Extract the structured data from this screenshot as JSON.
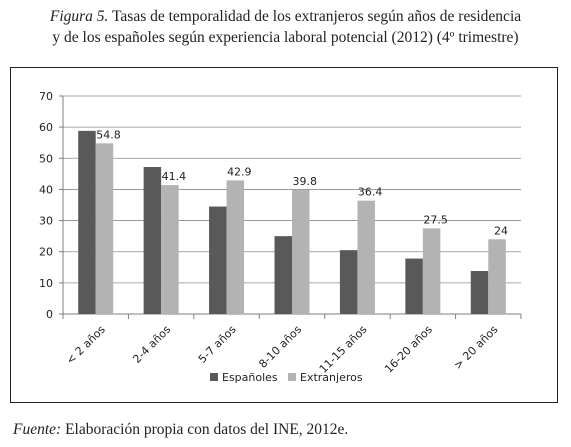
{
  "caption": {
    "label": "Figura 5.",
    "line1": "Tasas de temporalidad de los extranjeros según años de residencia",
    "line2": "y de los españoles según experiencia laboral potencial (2012) (4º trimestre)"
  },
  "source": {
    "label": "Fuente:",
    "text_before": "Elaboración propia con datos del",
    "org": "INE",
    "text_after": ", 2012e."
  },
  "chart_data": {
    "type": "bar",
    "categories": [
      "< 2 años",
      "2-4 años",
      "5-7 años",
      "8-10 años",
      "11-15 años",
      "16-20 años",
      "> 20 años"
    ],
    "series": [
      {
        "name": "Españoles",
        "values": [
          58.8,
          47.2,
          34.5,
          25.0,
          20.5,
          17.8,
          13.8
        ],
        "color": "#595959",
        "labels": [
          "",
          "",
          "",
          "",
          "",
          "",
          ""
        ]
      },
      {
        "name": "Extranjeros",
        "values": [
          54.8,
          41.4,
          42.9,
          39.8,
          36.4,
          27.5,
          24
        ],
        "color": "#b3b3b3",
        "labels": [
          "54.8",
          "41.4",
          "42.9",
          "39.8",
          "36.4",
          "27.5",
          "24"
        ]
      }
    ],
    "y_ticks": [
      "0",
      "10",
      "20",
      "30",
      "40",
      "50",
      "60",
      "70"
    ],
    "ylim": [
      0,
      70
    ],
    "grid": true,
    "legend_position": "bottom"
  }
}
